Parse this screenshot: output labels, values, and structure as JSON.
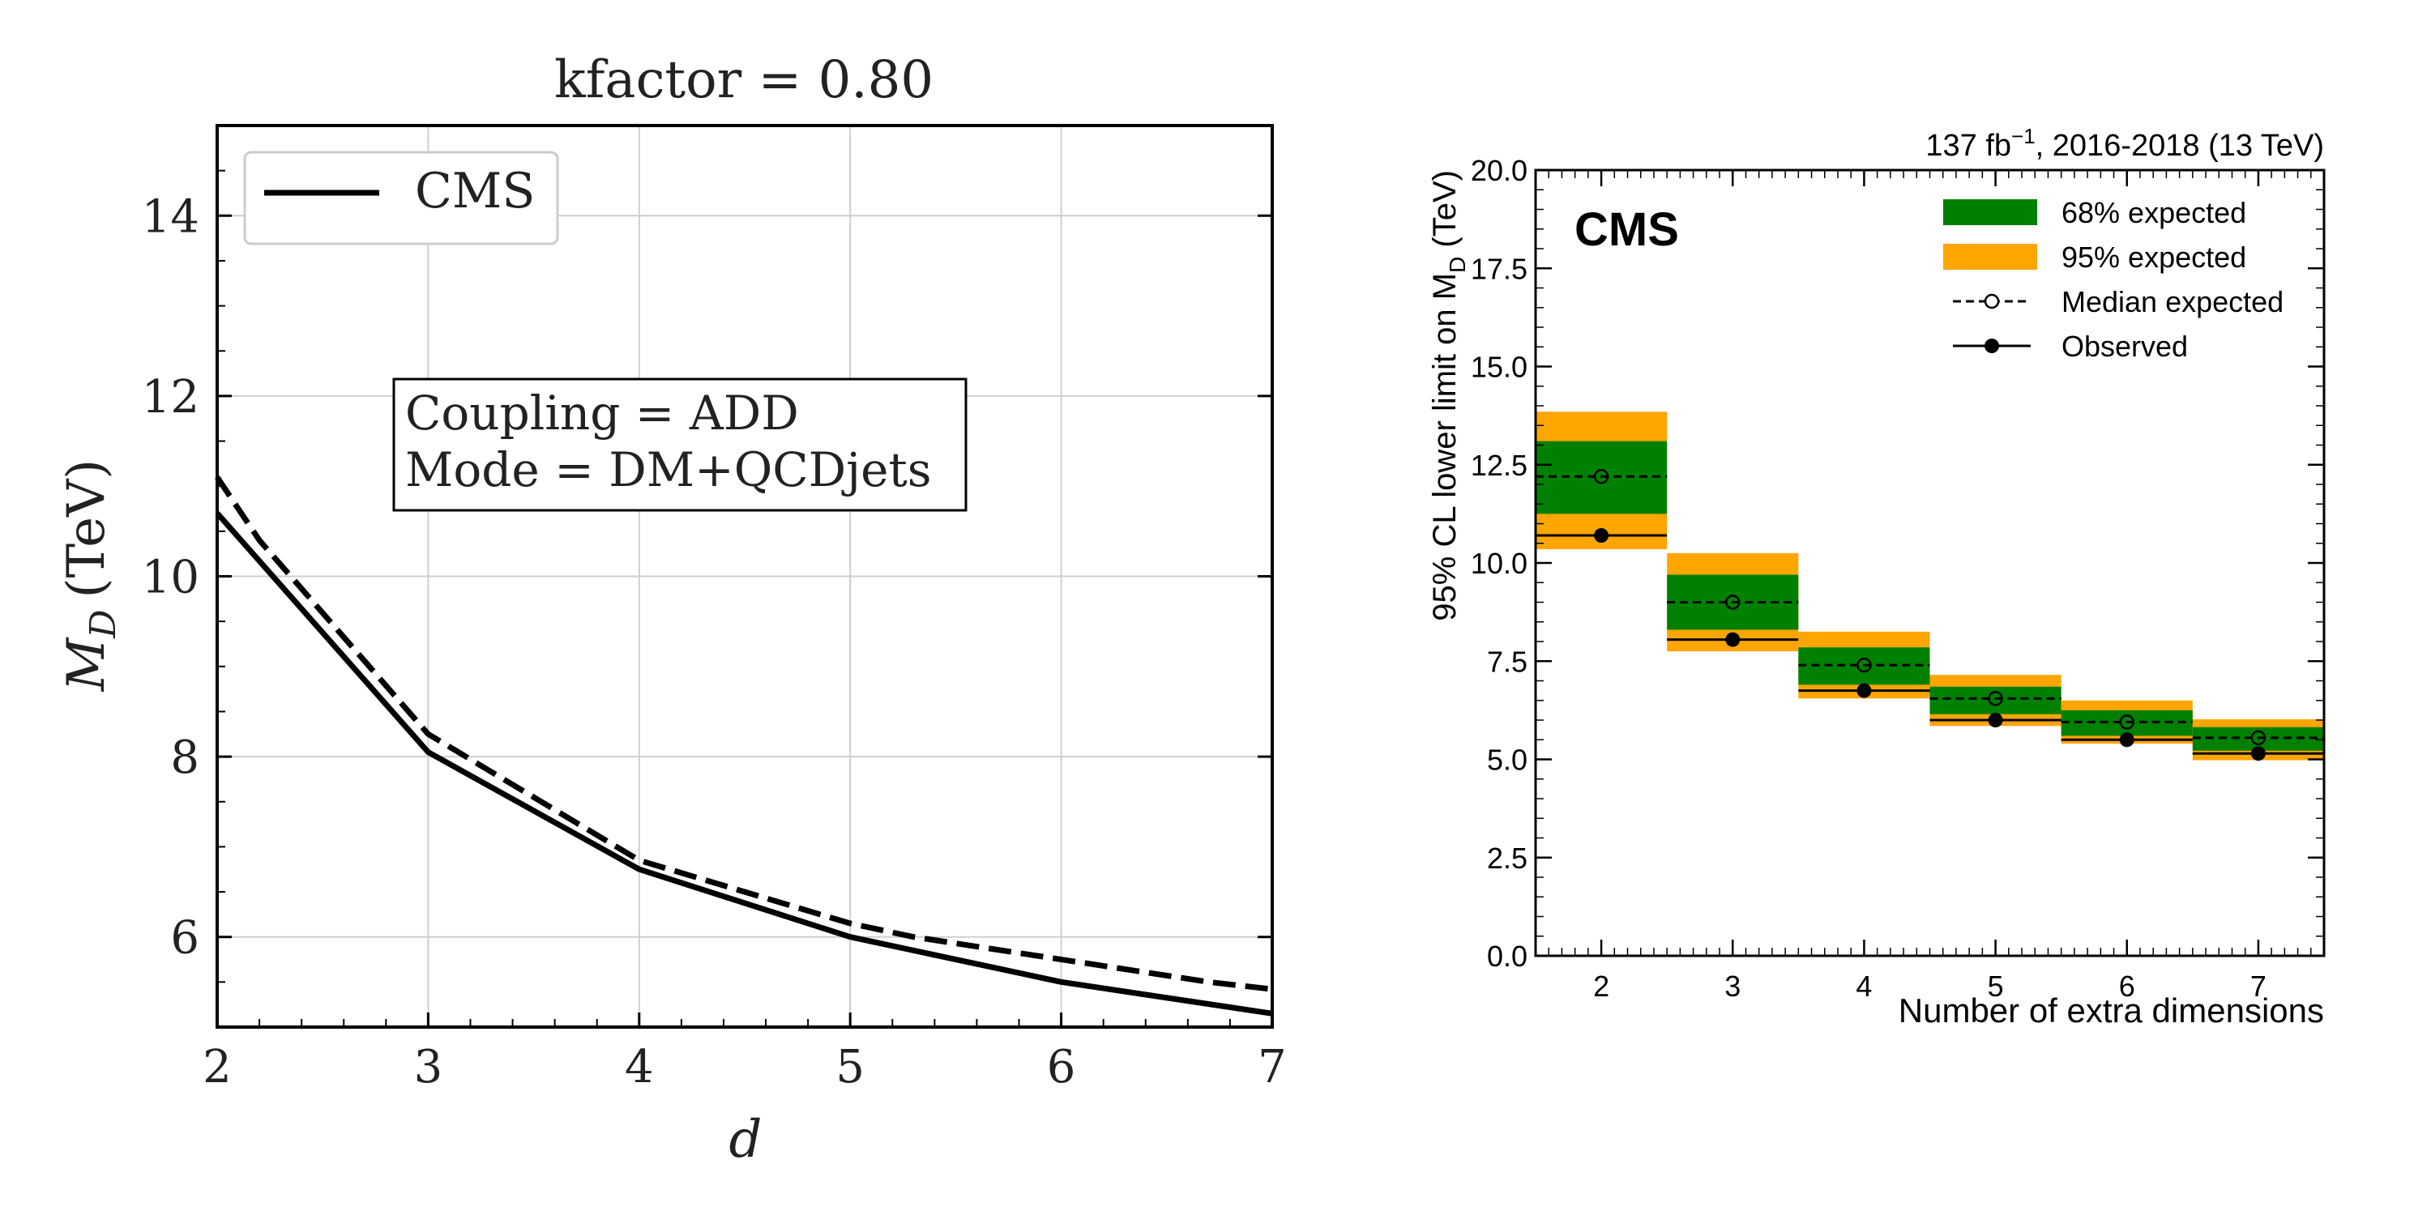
{
  "chart_data": [
    {
      "type": "line",
      "title": "kfactor = 0.80",
      "xlabel": "d",
      "ylabel_main": "M",
      "ylabel_sub": "D",
      "ylabel_unit": "(TeV)",
      "xlim": [
        2,
        7
      ],
      "ylim": [
        5,
        15
      ],
      "xticks": [
        2,
        3,
        4,
        5,
        6,
        7
      ],
      "yticks": [
        6,
        8,
        10,
        12,
        14
      ],
      "grid": true,
      "legend_position": "top-left",
      "legend": [
        "CMS"
      ],
      "annotation": [
        "Coupling = ADD",
        "Mode = DM+QCDjets"
      ],
      "series": [
        {
          "name": "CMS",
          "style": "solid",
          "x": [
            2,
            3,
            4,
            5,
            6,
            7
          ],
          "y": [
            10.7,
            8.05,
            6.75,
            6.0,
            5.5,
            5.15
          ]
        },
        {
          "style": "dashed",
          "x": [
            2,
            2.2,
            3,
            4,
            5,
            5.3,
            6,
            6.7,
            7
          ],
          "y": [
            11.1,
            10.4,
            8.25,
            6.85,
            6.15,
            6.0,
            5.75,
            5.5,
            5.42
          ]
        }
      ]
    },
    {
      "type": "bar",
      "lumi_label": "137 fb",
      "lumi_sup": "−1",
      "lumi_rest": ", 2016-2018 (13 TeV)",
      "experiment_label": "CMS",
      "xlabel": "Number of extra dimensions",
      "ylabel_pre": "95% CL lower limit on M",
      "ylabel_sub": "D",
      "ylabel_post": " (TeV)",
      "xlim": [
        1.5,
        7.5
      ],
      "ylim": [
        0,
        20
      ],
      "xticks": [
        2,
        3,
        4,
        5,
        6,
        7
      ],
      "yticks": [
        "0.0",
        "2.5",
        "5.0",
        "7.5",
        "10.0",
        "12.5",
        "15.0",
        "17.5",
        "20.0"
      ],
      "legend_position": "top-right",
      "legend": [
        "68% expected",
        "95% expected",
        "Median expected",
        "Observed"
      ],
      "categories": [
        2,
        3,
        4,
        5,
        6,
        7
      ],
      "band95": [
        [
          10.35,
          13.85
        ],
        [
          7.75,
          10.25
        ],
        [
          6.55,
          8.25
        ],
        [
          5.85,
          7.15
        ],
        [
          5.4,
          6.5
        ],
        [
          4.98,
          6.02
        ]
      ],
      "band68": [
        [
          11.25,
          13.1
        ],
        [
          8.3,
          9.7
        ],
        [
          6.9,
          7.85
        ],
        [
          6.15,
          6.85
        ],
        [
          5.6,
          6.25
        ],
        [
          5.22,
          5.82
        ]
      ],
      "median": [
        12.2,
        9.0,
        7.4,
        6.55,
        5.95,
        5.55
      ],
      "observed": [
        10.7,
        8.05,
        6.75,
        6.0,
        5.5,
        5.15
      ],
      "colors": {
        "band68": "#008000",
        "band95": "#ffa500",
        "line": "#000000"
      }
    }
  ]
}
